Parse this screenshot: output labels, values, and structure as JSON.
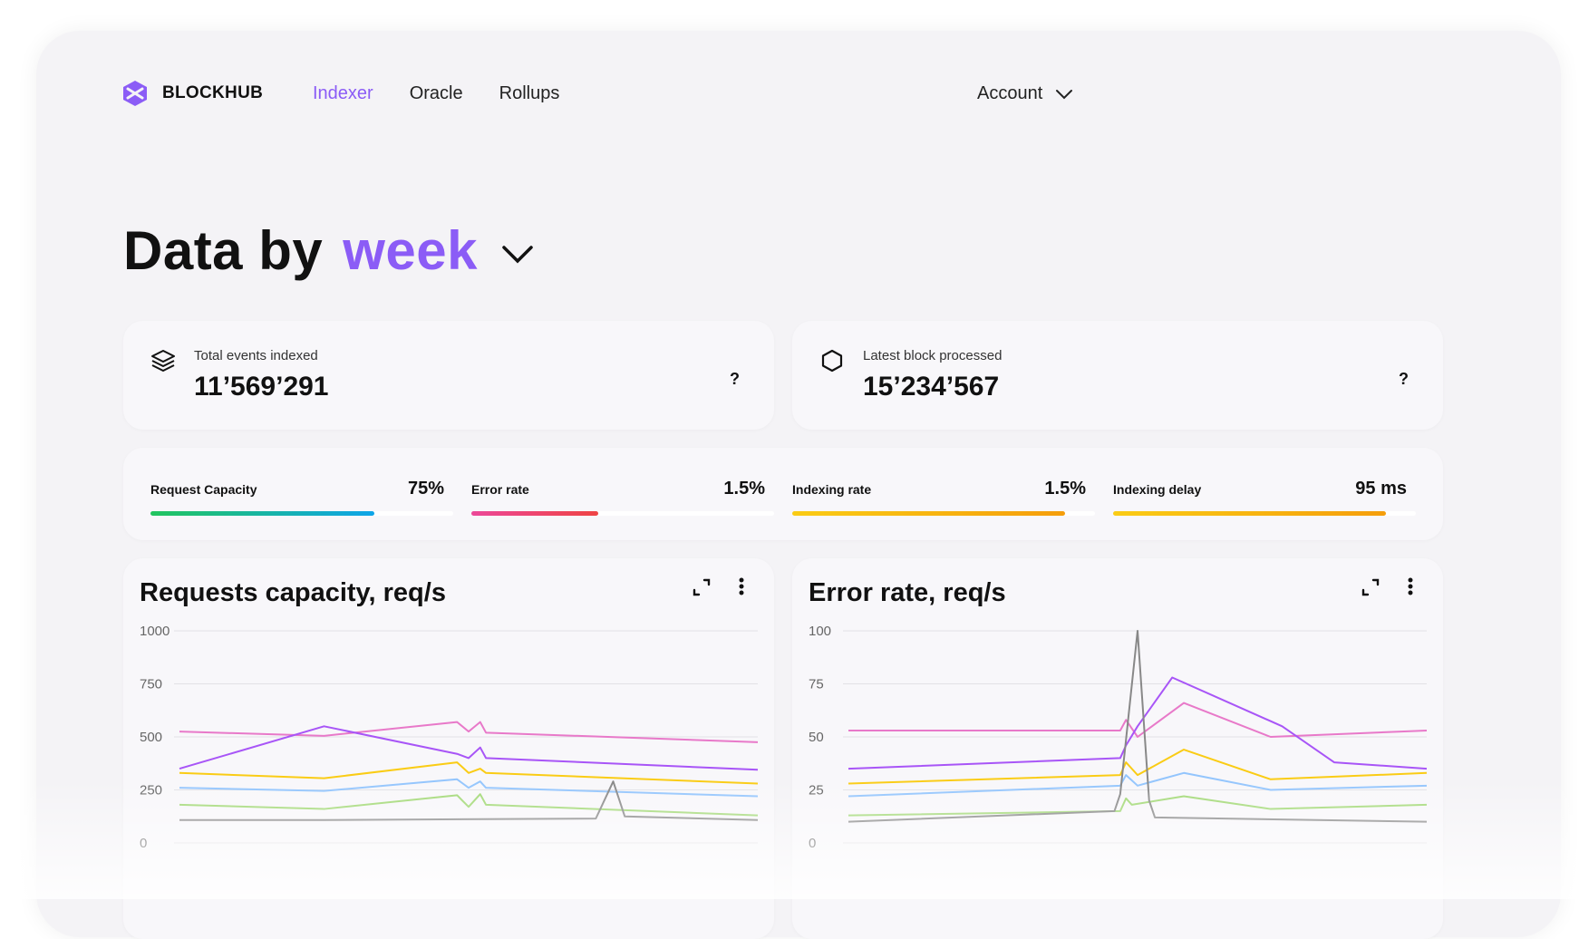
{
  "brand": {
    "name": "BLOCKHUB"
  },
  "nav": {
    "items": [
      {
        "label": "Indexer",
        "active": true
      },
      {
        "label": "Oracle",
        "active": false
      },
      {
        "label": "Rollups",
        "active": false
      }
    ],
    "account_label": "Account"
  },
  "headline": {
    "prefix": "Data by",
    "period": "week"
  },
  "stats": [
    {
      "icon": "layers-icon",
      "label": "Total events indexed",
      "value": "11’569’291",
      "help": "?"
    },
    {
      "icon": "hexagon-icon",
      "label": "Latest block processed",
      "value": "15’234’567",
      "help": "?"
    }
  ],
  "metrics": [
    {
      "label": "Request Capacity",
      "value": "75%",
      "fraction": 0.74,
      "gradient": [
        "#22c55e",
        "#0ea5e9"
      ]
    },
    {
      "label": "Error rate",
      "value": "1.5%",
      "fraction": 0.42,
      "gradient": [
        "#ec4899",
        "#ef4444"
      ]
    },
    {
      "label": "Indexing rate",
      "value": "1.5%",
      "fraction": 0.9,
      "gradient": [
        "#facc15",
        "#f59e0b"
      ]
    },
    {
      "label": "Indexing delay",
      "value": "95 ms",
      "fraction": 0.9,
      "gradient": [
        "#facc15",
        "#f59e0b"
      ]
    }
  ],
  "chart_data": [
    {
      "type": "line",
      "title": "Requests capacity, req/s",
      "ylim": [
        0,
        1000
      ],
      "yticks": [
        "1000",
        "750",
        "500",
        "250",
        "0"
      ],
      "grid": true,
      "series": [
        {
          "color": "#e879c9",
          "points": [
            [
              0,
              525
            ],
            [
              25,
              505
            ],
            [
              48,
              570
            ],
            [
              50,
              525
            ],
            [
              52,
              570
            ],
            [
              53,
              520
            ],
            [
              100,
              475
            ]
          ]
        },
        {
          "color": "#a855f7",
          "points": [
            [
              0,
              350
            ],
            [
              25,
              550
            ],
            [
              48,
              420
            ],
            [
              50,
              400
            ],
            [
              52,
              450
            ],
            [
              53,
              400
            ],
            [
              100,
              345
            ]
          ]
        },
        {
          "color": "#facc15",
          "points": [
            [
              0,
              330
            ],
            [
              25,
              305
            ],
            [
              48,
              380
            ],
            [
              50,
              330
            ],
            [
              52,
              350
            ],
            [
              53,
              330
            ],
            [
              100,
              280
            ]
          ]
        },
        {
          "color": "#93c5fd",
          "points": [
            [
              0,
              260
            ],
            [
              25,
              245
            ],
            [
              48,
              300
            ],
            [
              50,
              260
            ],
            [
              52,
              290
            ],
            [
              53,
              260
            ],
            [
              100,
              220
            ]
          ]
        },
        {
          "color": "#a3d977",
          "points": [
            [
              0,
              180
            ],
            [
              25,
              160
            ],
            [
              48,
              225
            ],
            [
              50,
              170
            ],
            [
              52,
              230
            ],
            [
              53,
              180
            ],
            [
              100,
              130
            ]
          ]
        },
        {
          "color": "#888888",
          "points": [
            [
              0,
              108
            ],
            [
              25,
              108
            ],
            [
              72,
              115
            ],
            [
              75,
              290
            ],
            [
              77,
              125
            ],
            [
              100,
              108
            ]
          ]
        }
      ]
    },
    {
      "type": "line",
      "title": "Error rate, req/s",
      "ylim": [
        0,
        100
      ],
      "yticks": [
        "100",
        "75",
        "50",
        "25",
        "0"
      ],
      "grid": true,
      "series": [
        {
          "color": "#e879c9",
          "points": [
            [
              0,
              53
            ],
            [
              47,
              53
            ],
            [
              48,
              58
            ],
            [
              50,
              50
            ],
            [
              58,
              66
            ],
            [
              73,
              50
            ],
            [
              100,
              53
            ]
          ]
        },
        {
          "color": "#a855f7",
          "points": [
            [
              0,
              35
            ],
            [
              47,
              40
            ],
            [
              48,
              46
            ],
            [
              50,
              55
            ],
            [
              56,
              78
            ],
            [
              75,
              55
            ],
            [
              84,
              38
            ],
            [
              100,
              35
            ]
          ]
        },
        {
          "color": "#facc15",
          "points": [
            [
              0,
              28
            ],
            [
              47,
              32
            ],
            [
              48,
              38
            ],
            [
              50,
              32
            ],
            [
              58,
              44
            ],
            [
              73,
              30
            ],
            [
              100,
              33
            ]
          ]
        },
        {
          "color": "#93c5fd",
          "points": [
            [
              0,
              22
            ],
            [
              47,
              27
            ],
            [
              48,
              32
            ],
            [
              50,
              27
            ],
            [
              58,
              33
            ],
            [
              73,
              25
            ],
            [
              100,
              27
            ]
          ]
        },
        {
          "color": "#a3d977",
          "points": [
            [
              0,
              13
            ],
            [
              47,
              15
            ],
            [
              48,
              21
            ],
            [
              49,
              18
            ],
            [
              58,
              22
            ],
            [
              73,
              16
            ],
            [
              100,
              18
            ]
          ]
        },
        {
          "color": "#888888",
          "points": [
            [
              0,
              10
            ],
            [
              46,
              15
            ],
            [
              47,
              23
            ],
            [
              50,
              100
            ],
            [
              52,
              20
            ],
            [
              53,
              12
            ],
            [
              100,
              10
            ]
          ]
        }
      ]
    }
  ]
}
